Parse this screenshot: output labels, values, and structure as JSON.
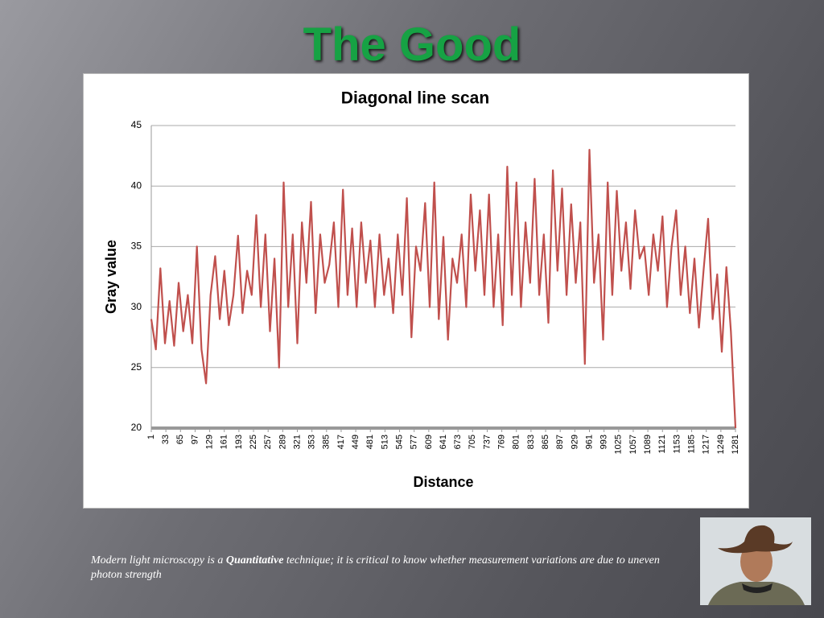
{
  "slide_title": "The Good",
  "caption": {
    "before": "Modern light microscopy is a ",
    "emphasis": "Quantitative",
    "after": " technique; it is critical to know whether measurement variations are due to uneven photon strength"
  },
  "chart_data": {
    "type": "line",
    "title": "Diagonal line scan",
    "xlabel": "Distance",
    "ylabel": "Gray value",
    "color": "#c0504d",
    "grid": true,
    "xlim": [
      1,
      1281
    ],
    "ylim": [
      20,
      45
    ],
    "yticks": [
      20,
      25,
      30,
      35,
      40,
      45
    ],
    "xticks": [
      1,
      33,
      65,
      97,
      129,
      161,
      193,
      225,
      257,
      289,
      321,
      353,
      385,
      417,
      449,
      481,
      513,
      545,
      577,
      609,
      641,
      673,
      705,
      737,
      769,
      801,
      833,
      865,
      897,
      929,
      961,
      993,
      1025,
      1057,
      1089,
      1121,
      1153,
      1185,
      1217,
      1249,
      1281
    ],
    "x": [
      1,
      11,
      21,
      31,
      41,
      51,
      61,
      71,
      81,
      91,
      101,
      111,
      121,
      131,
      141,
      151,
      161,
      171,
      181,
      191,
      201,
      211,
      221,
      231,
      241,
      251,
      261,
      271,
      281,
      291,
      301,
      311,
      321,
      331,
      341,
      351,
      361,
      371,
      381,
      391,
      401,
      411,
      421,
      431,
      441,
      451,
      461,
      471,
      481,
      491,
      501,
      511,
      521,
      531,
      541,
      551,
      561,
      571,
      581,
      591,
      601,
      611,
      621,
      631,
      641,
      651,
      661,
      671,
      681,
      691,
      701,
      711,
      721,
      731,
      741,
      751,
      761,
      771,
      781,
      791,
      801,
      811,
      821,
      831,
      841,
      851,
      861,
      871,
      881,
      891,
      901,
      911,
      921,
      931,
      941,
      951,
      961,
      971,
      981,
      991,
      1001,
      1011,
      1021,
      1031,
      1041,
      1051,
      1061,
      1071,
      1081,
      1091,
      1101,
      1111,
      1121,
      1131,
      1141,
      1151,
      1161,
      1171,
      1181,
      1191,
      1201,
      1211,
      1221,
      1231,
      1241,
      1251,
      1261,
      1271,
      1281
    ],
    "values": [
      29,
      26.5,
      33.2,
      27,
      30.5,
      26.8,
      32,
      28,
      31,
      27,
      35,
      26.5,
      23.7,
      31,
      34.2,
      29,
      33,
      28.5,
      31,
      35.9,
      29.5,
      33,
      31,
      37.6,
      30,
      36,
      28,
      34,
      25,
      40.3,
      30,
      36,
      27,
      37,
      32,
      38.7,
      29.5,
      36,
      32,
      33.5,
      37,
      30,
      39.7,
      31,
      36.5,
      30,
      37,
      32,
      35.5,
      30,
      36,
      31,
      34,
      29.5,
      36,
      31,
      39,
      27.5,
      35,
      33,
      38.6,
      30,
      40.3,
      29,
      35.8,
      27.3,
      34,
      32,
      36,
      30,
      39.3,
      33,
      38,
      31,
      39.3,
      30,
      36,
      28.5,
      41.6,
      31,
      40.3,
      30,
      37,
      32,
      40.6,
      31,
      36,
      28.7,
      41.3,
      33,
      39.8,
      31,
      38.5,
      32,
      37,
      25.3,
      43,
      32,
      36,
      27.3,
      40.3,
      31,
      39.6,
      33,
      37,
      31.5,
      38,
      34,
      35,
      31,
      36,
      33,
      37.5,
      30,
      35,
      38,
      31,
      35,
      29.5,
      34,
      28.3,
      33,
      37.3,
      29,
      32.7,
      26.3,
      33.3,
      28,
      20
    ]
  }
}
